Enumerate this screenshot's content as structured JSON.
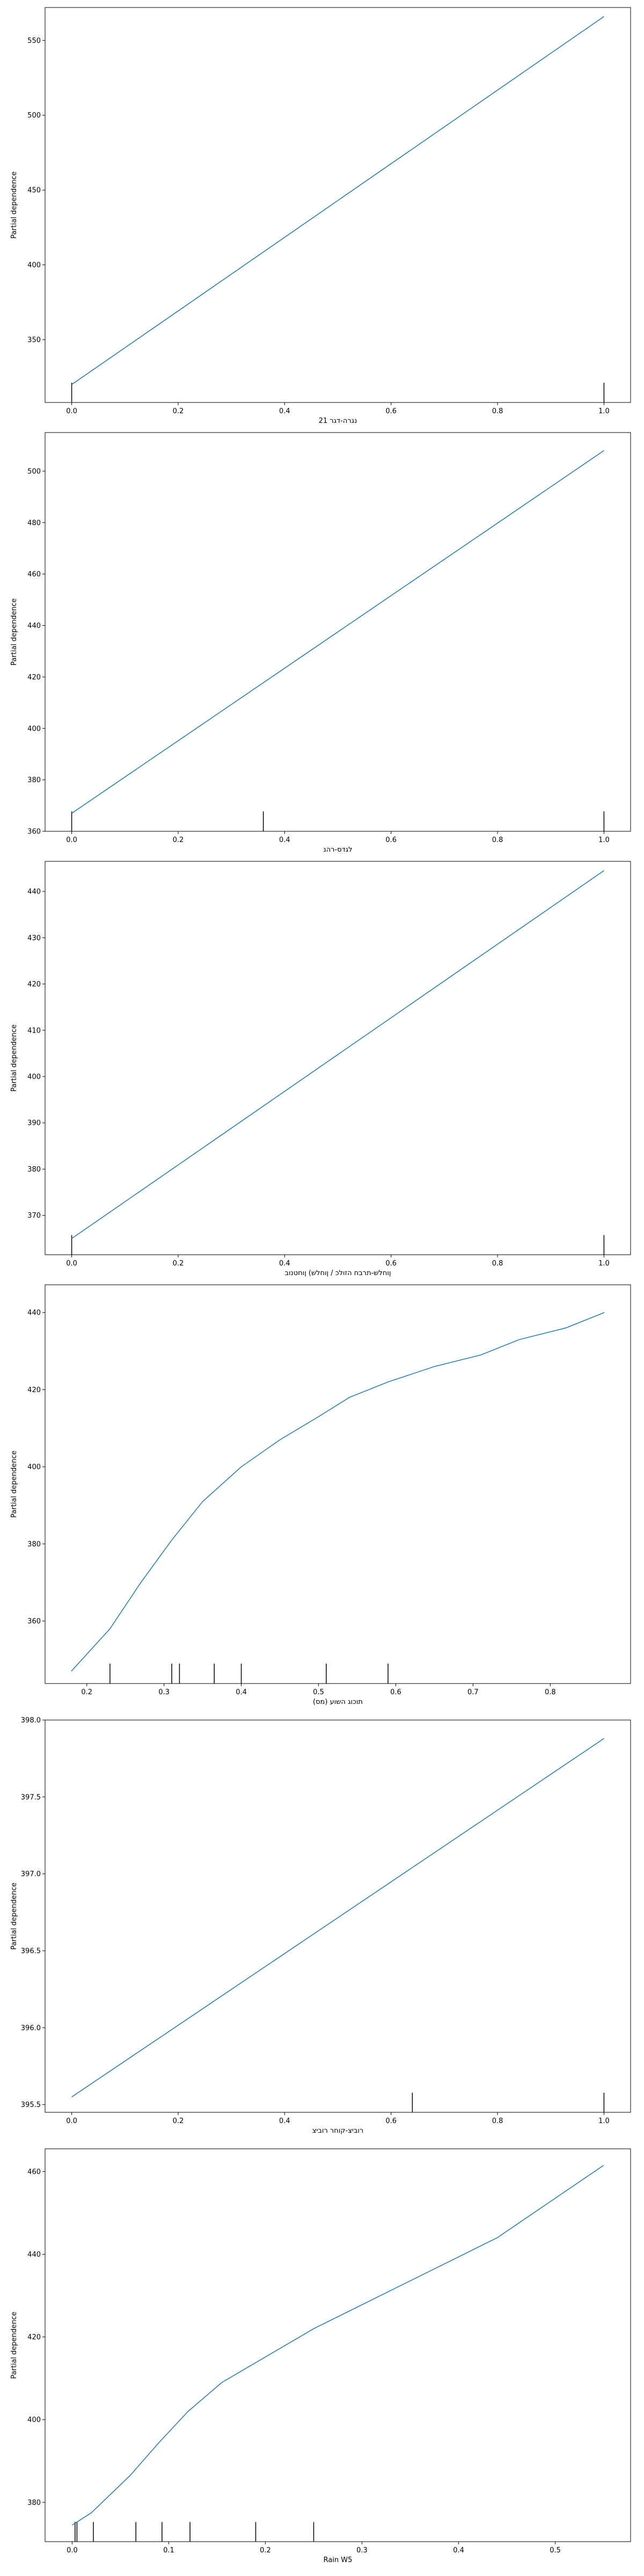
{
  "colors": {
    "line": "#1f77b4",
    "axes": "#000000",
    "background": "#ffffff"
  },
  "chart_data": [
    {
      "type": "line",
      "xlabel": "נגרה-דגר 21",
      "ylabel": "Partial dependence",
      "xlim": [
        -0.05,
        1.05
      ],
      "ylim": [
        308,
        572
      ],
      "xticks": [
        0.0,
        0.2,
        0.4,
        0.6,
        0.8,
        1.0
      ],
      "xtick_labels": [
        "0.0",
        "0.2",
        "0.4",
        "0.6",
        "0.8",
        "1.0"
      ],
      "yticks": [
        350,
        400,
        450,
        500,
        550
      ],
      "ytick_labels": [
        "350",
        "400",
        "450",
        "500",
        "550"
      ],
      "x": [
        0.0,
        1.0
      ],
      "y": [
        320,
        566
      ],
      "rug": [
        0.0,
        1.0
      ]
    },
    {
      "type": "line",
      "xlabel": "לגדס-רהנ",
      "ylabel": "Partial dependence",
      "xlim": [
        -0.05,
        1.05
      ],
      "ylim": [
        360,
        515
      ],
      "xticks": [
        0.0,
        0.2,
        0.4,
        0.6,
        0.8,
        1.0
      ],
      "xtick_labels": [
        "0.0",
        "0.2",
        "0.4",
        "0.6",
        "0.8",
        "1.0"
      ],
      "yticks": [
        360,
        380,
        400,
        420,
        440,
        460,
        480,
        500
      ],
      "ytick_labels": [
        "360",
        "380",
        "400",
        "420",
        "440",
        "460",
        "480",
        "500"
      ],
      "x": [
        0.0,
        1.0
      ],
      "y": [
        367,
        508
      ],
      "rug": [
        0.0,
        0.36,
        1.0
      ]
    },
    {
      "type": "line",
      "xlabel": "ןוחלש-תרבח הזולכ / ןוחלש) ןוחטנוב",
      "ylabel": "Partial dependence",
      "xlim": [
        -0.05,
        1.05
      ],
      "ylim": [
        361.5,
        446.5
      ],
      "xticks": [
        0.0,
        0.2,
        0.4,
        0.6,
        0.8,
        1.0
      ],
      "xtick_labels": [
        "0.0",
        "0.2",
        "0.4",
        "0.6",
        "0.8",
        "1.0"
      ],
      "yticks": [
        370,
        380,
        390,
        400,
        410,
        420,
        430,
        440
      ],
      "ytick_labels": [
        "370",
        "380",
        "390",
        "400",
        "410",
        "420",
        "430",
        "440"
      ],
      "x": [
        0.0,
        1.0
      ],
      "y": [
        365,
        444.5
      ],
      "rug": [
        0.0,
        1.0
      ]
    },
    {
      "type": "line",
      "xlabel": "תוכוג השוע (מס)",
      "ylabel": "Partial dependence",
      "xlim": [
        0.146,
        0.904
      ],
      "ylim": [
        343.8,
        447.2
      ],
      "xticks": [
        0.2,
        0.3,
        0.4,
        0.5,
        0.6,
        0.7,
        0.8
      ],
      "xtick_labels": [
        "0.2",
        "0.3",
        "0.4",
        "0.5",
        "0.6",
        "0.7",
        "0.8"
      ],
      "yticks": [
        360,
        380,
        400,
        420,
        440
      ],
      "ytick_labels": [
        "360",
        "380",
        "400",
        "420",
        "440"
      ],
      "x": [
        0.18,
        0.23,
        0.27,
        0.31,
        0.35,
        0.4,
        0.45,
        0.5,
        0.54,
        0.59,
        0.65,
        0.71,
        0.76,
        0.82,
        0.87
      ],
      "y": [
        347,
        358,
        370,
        381,
        391,
        400,
        407,
        413,
        418,
        422,
        426,
        429,
        433,
        436,
        440
      ],
      "rug": [
        0.23,
        0.31,
        0.32,
        0.365,
        0.4,
        0.51,
        0.59
      ]
    },
    {
      "type": "line",
      "xlabel": "רוביצ-קוחר רוביצ",
      "ylabel": "Partial dependence",
      "xlim": [
        -0.05,
        1.05
      ],
      "ylim": [
        395.45,
        398.0
      ],
      "xticks": [
        0.0,
        0.2,
        0.4,
        0.6,
        0.8,
        1.0
      ],
      "xtick_labels": [
        "0.0",
        "0.2",
        "0.4",
        "0.6",
        "0.8",
        "1.0"
      ],
      "yticks": [
        395.5,
        396.0,
        396.5,
        397.0,
        397.5,
        398.0
      ],
      "ytick_labels": [
        "395.5",
        "396.0",
        "396.5",
        "397.0",
        "397.5",
        "398.0"
      ],
      "x": [
        0.0,
        1.0
      ],
      "y": [
        395.55,
        397.88
      ],
      "rug": [
        0.64,
        1.0
      ]
    },
    {
      "type": "line",
      "xlabel": "Rain W5",
      "ylabel": "Partial dependence",
      "xlim": [
        -0.028,
        0.578
      ],
      "ylim": [
        370.5,
        465.5
      ],
      "xticks": [
        0.0,
        0.1,
        0.2,
        0.3,
        0.4,
        0.5
      ],
      "xtick_labels": [
        "0.0",
        "0.1",
        "0.2",
        "0.3",
        "0.4",
        "0.5"
      ],
      "yticks": [
        380,
        400,
        420,
        440,
        460
      ],
      "ytick_labels": [
        "380",
        "400",
        "420",
        "440",
        "460"
      ],
      "x": [
        0.0,
        0.02,
        0.06,
        0.09,
        0.12,
        0.155,
        0.25,
        0.44,
        0.55
      ],
      "y": [
        374.5,
        377.5,
        386.5,
        394.5,
        402,
        409,
        422,
        444,
        461.5
      ],
      "rug": [
        0.003,
        0.005,
        0.022,
        0.066,
        0.093,
        0.122,
        0.19,
        0.25
      ]
    }
  ]
}
